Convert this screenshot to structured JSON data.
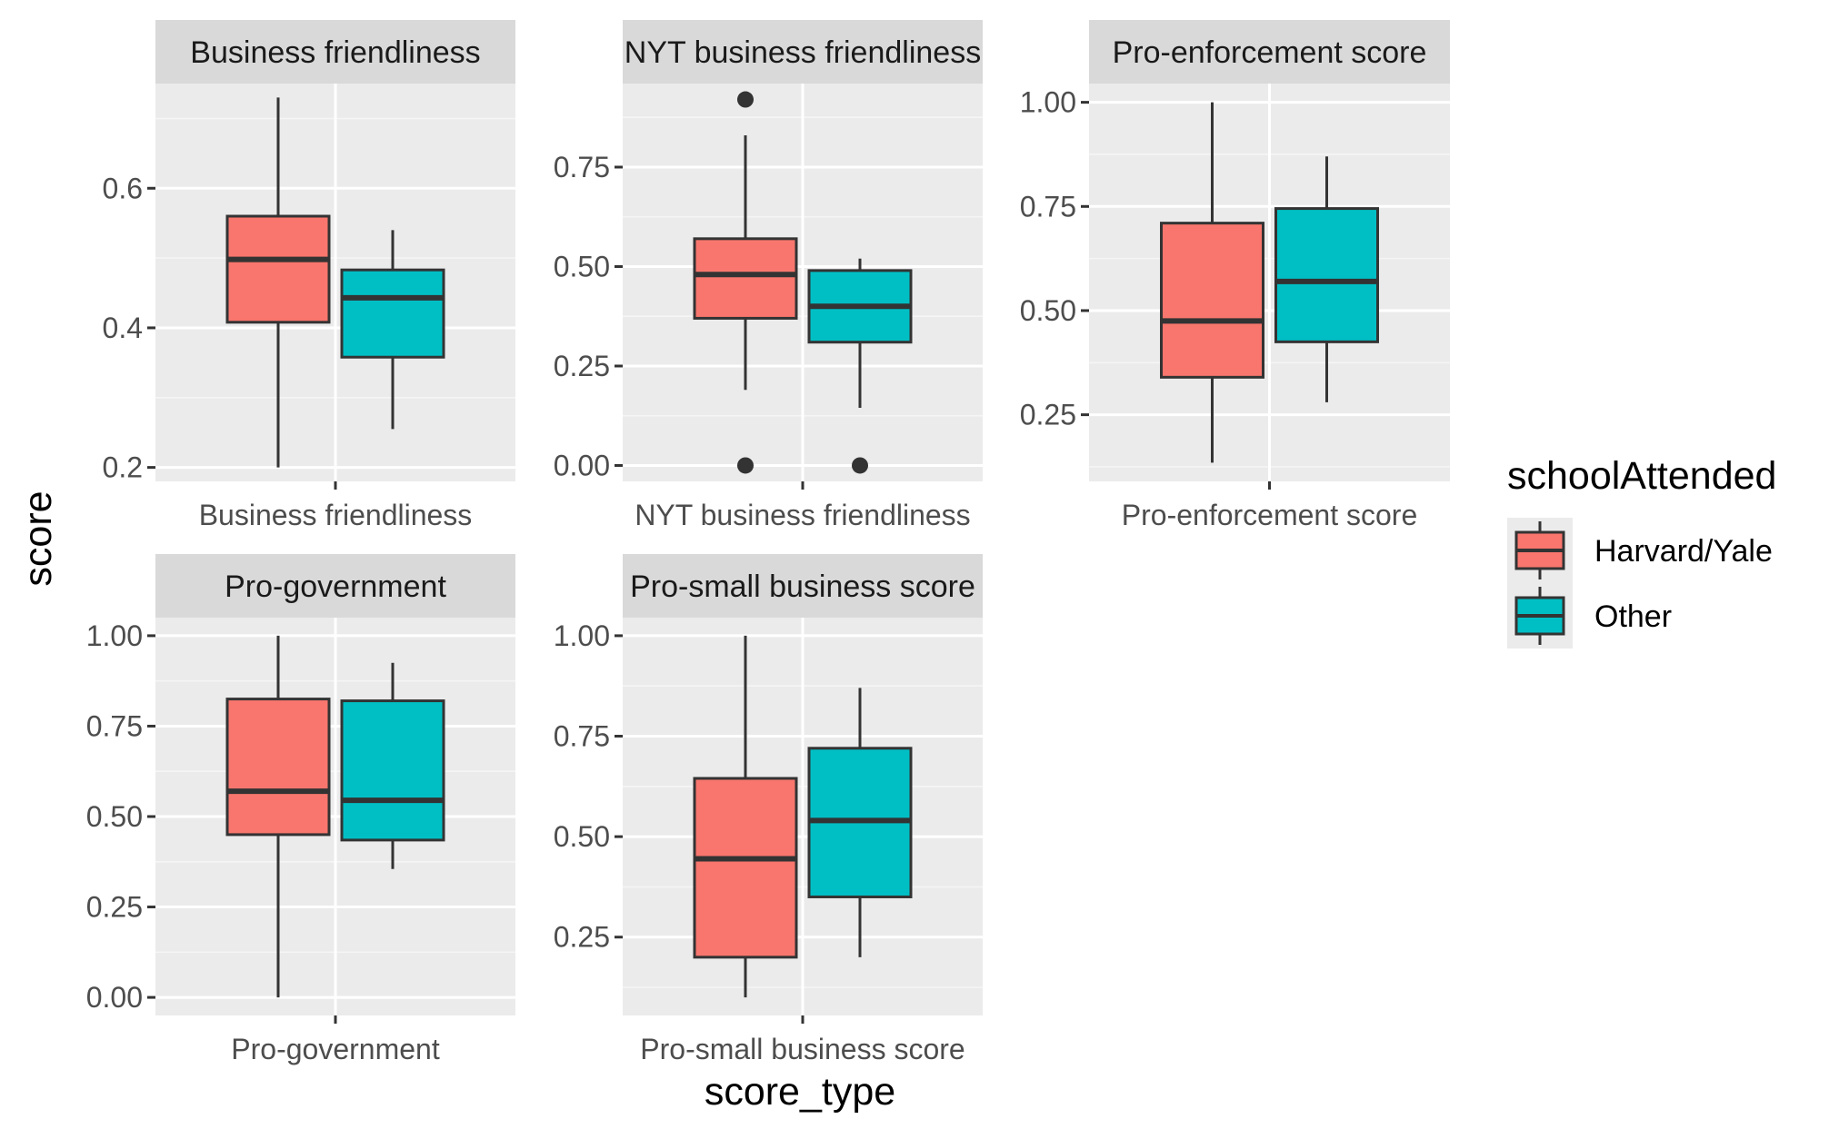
{
  "chart_data": {
    "type": "box",
    "xlabel": "score_type",
    "ylabel": "score",
    "legend": {
      "title": "schoolAttended",
      "position": "right",
      "entries": [
        {
          "name": "Harvard/Yale",
          "color": "#F8766D"
        },
        {
          "name": "Other",
          "color": "#00BFC4"
        }
      ]
    },
    "grid": true,
    "facets": [
      {
        "title": "Business friendliness",
        "category": "Business friendliness",
        "ylim": [
          0.18,
          0.75
        ],
        "yticks": [
          0.2,
          0.4,
          0.6
        ],
        "ytick_labels": [
          "0.2",
          "0.4",
          "0.6"
        ],
        "boxes": [
          {
            "group": "Harvard/Yale",
            "min": 0.2,
            "q1": 0.408,
            "median": 0.498,
            "q3": 0.56,
            "max": 0.73,
            "outliers": []
          },
          {
            "group": "Other",
            "min": 0.255,
            "q1": 0.358,
            "median": 0.443,
            "q3": 0.483,
            "max": 0.54,
            "outliers": []
          }
        ]
      },
      {
        "title": "NYT business friendliness",
        "category": "NYT business friendliness",
        "ylim": [
          -0.04,
          0.96
        ],
        "yticks": [
          0.0,
          0.25,
          0.5,
          0.75
        ],
        "ytick_labels": [
          "0.00",
          "0.25",
          "0.50",
          "0.75"
        ],
        "boxes": [
          {
            "group": "Harvard/Yale",
            "min": 0.19,
            "q1": 0.37,
            "median": 0.48,
            "q3": 0.57,
            "max": 0.83,
            "outliers": [
              0.92,
              0.0
            ]
          },
          {
            "group": "Other",
            "min": 0.145,
            "q1": 0.31,
            "median": 0.4,
            "q3": 0.49,
            "max": 0.52,
            "outliers": [
              0.0
            ]
          }
        ]
      },
      {
        "title": "Pro-enforcement score",
        "category": "Pro-enforcement score",
        "ylim": [
          0.09,
          1.045
        ],
        "yticks": [
          0.25,
          0.5,
          0.75,
          1.0
        ],
        "ytick_labels": [
          "0.25",
          "0.50",
          "0.75",
          "1.00"
        ],
        "boxes": [
          {
            "group": "Harvard/Yale",
            "min": 0.135,
            "q1": 0.34,
            "median": 0.475,
            "q3": 0.71,
            "max": 1.0,
            "outliers": []
          },
          {
            "group": "Other",
            "min": 0.28,
            "q1": 0.425,
            "median": 0.57,
            "q3": 0.745,
            "max": 0.87,
            "outliers": []
          }
        ]
      },
      {
        "title": "Pro-government",
        "category": "Pro-government",
        "ylim": [
          -0.05,
          1.05
        ],
        "yticks": [
          0.0,
          0.25,
          0.5,
          0.75,
          1.0
        ],
        "ytick_labels": [
          "0.00",
          "0.25",
          "0.50",
          "0.75",
          "1.00"
        ],
        "boxes": [
          {
            "group": "Harvard/Yale",
            "min": 0.0,
            "q1": 0.45,
            "median": 0.57,
            "q3": 0.825,
            "max": 1.0,
            "outliers": []
          },
          {
            "group": "Other",
            "min": 0.355,
            "q1": 0.435,
            "median": 0.545,
            "q3": 0.82,
            "max": 0.925,
            "outliers": []
          }
        ]
      },
      {
        "title": "Pro-small business score",
        "category": "Pro-small business score",
        "ylim": [
          0.055,
          1.045
        ],
        "yticks": [
          0.25,
          0.5,
          0.75,
          1.0
        ],
        "ytick_labels": [
          "0.25",
          "0.50",
          "0.75",
          "1.00"
        ],
        "boxes": [
          {
            "group": "Harvard/Yale",
            "min": 0.1,
            "q1": 0.2,
            "median": 0.445,
            "q3": 0.645,
            "max": 1.0,
            "outliers": []
          },
          {
            "group": "Other",
            "min": 0.2,
            "q1": 0.35,
            "median": 0.54,
            "q3": 0.72,
            "max": 0.87,
            "outliers": []
          }
        ]
      }
    ]
  }
}
